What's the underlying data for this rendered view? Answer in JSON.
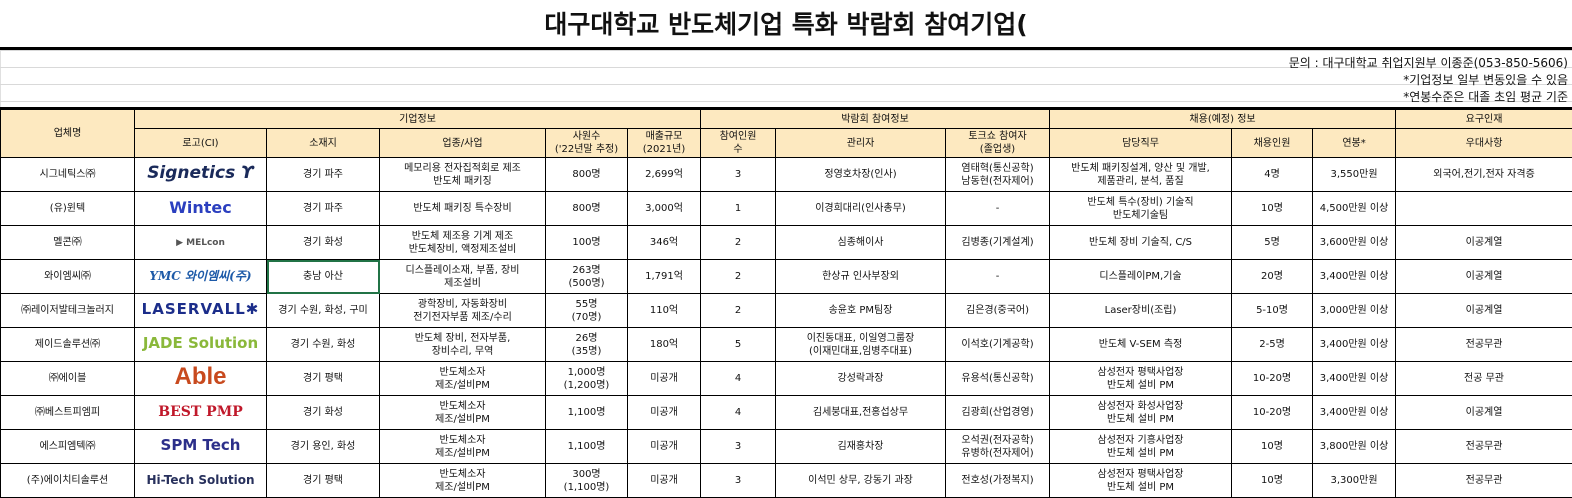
{
  "title": "대구대학교 반도체기업 특화 박람회 참여기업(",
  "info": [
    "문의 : 대구대학교 취업지원부 이종준(053-850-5606)",
    "*기업정보 일부 변동있을 수 있음",
    "*연봉수준은 대졸 초임 평균 기준"
  ],
  "groups": {
    "name": "업체명",
    "company": "기업정보",
    "fair": "박람회 참여정보",
    "hiring": "채용(예정) 정보",
    "talent": "요구인재"
  },
  "columns": [
    "로고(CI)",
    "소재지",
    "업종/사업",
    "사원수\n('22년말 추정)",
    "매출규모\n(2021년)",
    "참여인원\n수",
    "관리자",
    "토크쇼 참여자\n(졸업생)",
    "담당직무",
    "채용인원",
    "연봉*",
    "우대사항"
  ],
  "rows": [
    [
      "시그네틱스㈜",
      "Signetics ϒ",
      "경기 파주",
      "메모리용 전자집적회로 제조\n반도체 패키징",
      "800명",
      "2,699억",
      "3",
      "정영호차장(인사)",
      "염태혁(통신공학)\n남동현(전자제어)",
      "반도체 패키징설계, 양산 및 개발,\n제품관리, 분석, 품질",
      "4명",
      "3,550만원",
      "외국어,전기,전자 자격증"
    ],
    [
      "(유)윈텍",
      "Wintec",
      "경기 파주",
      "반도체 패키징 특수장비",
      "800명",
      "3,000억",
      "1",
      "이경희대리(인사총무)",
      "-",
      "반도체 특수(장비) 기술직\n반도체기술팀",
      "10명",
      "4,500만원 이상",
      ""
    ],
    [
      "멜콘㈜",
      "▶ MELcon",
      "경기 화성",
      "반도체 제조용 기계 제조\n반도체장비, 액정제조설비",
      "100명",
      "346억",
      "2",
      "심종해이사",
      "김병종(기계설계)",
      "반도체 장비 기술직, C/S",
      "5명",
      "3,600만원 이상",
      "이공계열"
    ],
    [
      "와이엠씨㈜",
      "YMC 와이엠씨(주)",
      "충남 아산",
      "디스플레이소재, 부품, 장비\n제조설비",
      "263명\n(500명)",
      "1,791억",
      "2",
      "한상규 인사부장외",
      "-",
      "디스플레이PM,기술",
      "20명",
      "3,400만원 이상",
      "이공계열"
    ],
    [
      "㈜레이저발테크놀러지",
      "LASERVALL✱",
      "경기 수원, 화성, 구미",
      "광학장비, 자동화장비\n전기전자부품 제조/수리",
      "55명\n(70명)",
      "110억",
      "2",
      "송윤호 PM팀장",
      "김은경(중국어)",
      "Laser장비(조립)",
      "5-10명",
      "3,000만원 이상",
      "이공계열"
    ],
    [
      "제이드솔루션㈜",
      "JADE Solution",
      "경기 수원, 화성",
      "반도체 장비, 전자부품,\n장비수리, 무역",
      "26명\n(35명)",
      "180억",
      "5",
      "이진동대표, 이일영그룹장\n(이재민대표,임병주대표)",
      "이석호(기계공학)",
      "반도체 V-SEM 측정",
      "2-5명",
      "3,400만원 이상",
      "전공무관"
    ],
    [
      "㈜에이블",
      "Able",
      "경기 평택",
      "반도체소자\n제조/설비PM",
      "1,000명\n(1,200명)",
      "미공개",
      "4",
      "강성락과장",
      "유용석(통신공학)",
      "삼성전자 평택사업장\n반도체 설비 PM",
      "10-20명",
      "3,400만원 이상",
      "전공 무관"
    ],
    [
      "㈜베스트피엠피",
      "BEST PMP",
      "경기 화성",
      "반도체소자\n제조/설비PM",
      "1,100명",
      "미공개",
      "4",
      "김세붕대표,전홍섭상무",
      "김광희(산업경영)",
      "삼성전자 화성사업장\n반도체 설비 PM",
      "10-20명",
      "3,400만원 이상",
      "이공계열"
    ],
    [
      "에스피엠텍㈜",
      "SPM Tech",
      "경기 용인, 화성",
      "반도체소자\n제조/설비PM",
      "1,100명",
      "미공개",
      "3",
      "김재홍차장",
      "오석권(전자공학)\n유병하(전자제어)",
      "삼성전자 기흥사업장\n반도체 설비 PM",
      "10명",
      "3,800만원 이상",
      "전공무관"
    ],
    [
      "(주)에이치티솔루션",
      "Hi-Tech Solution",
      "경기 평택",
      "반도체소자\n제조/설비PM",
      "300명\n(1,100명)",
      "미공개",
      "3",
      "이석민 상무, 강동기 과장",
      "전호성(가정복지)",
      "삼성전자 평택사업장\n반도체 설비 PM",
      "10명",
      "3,300만원",
      "전공무관"
    ]
  ],
  "colors": {
    "header_bg": "#fde9c0",
    "selection": "#217346"
  }
}
